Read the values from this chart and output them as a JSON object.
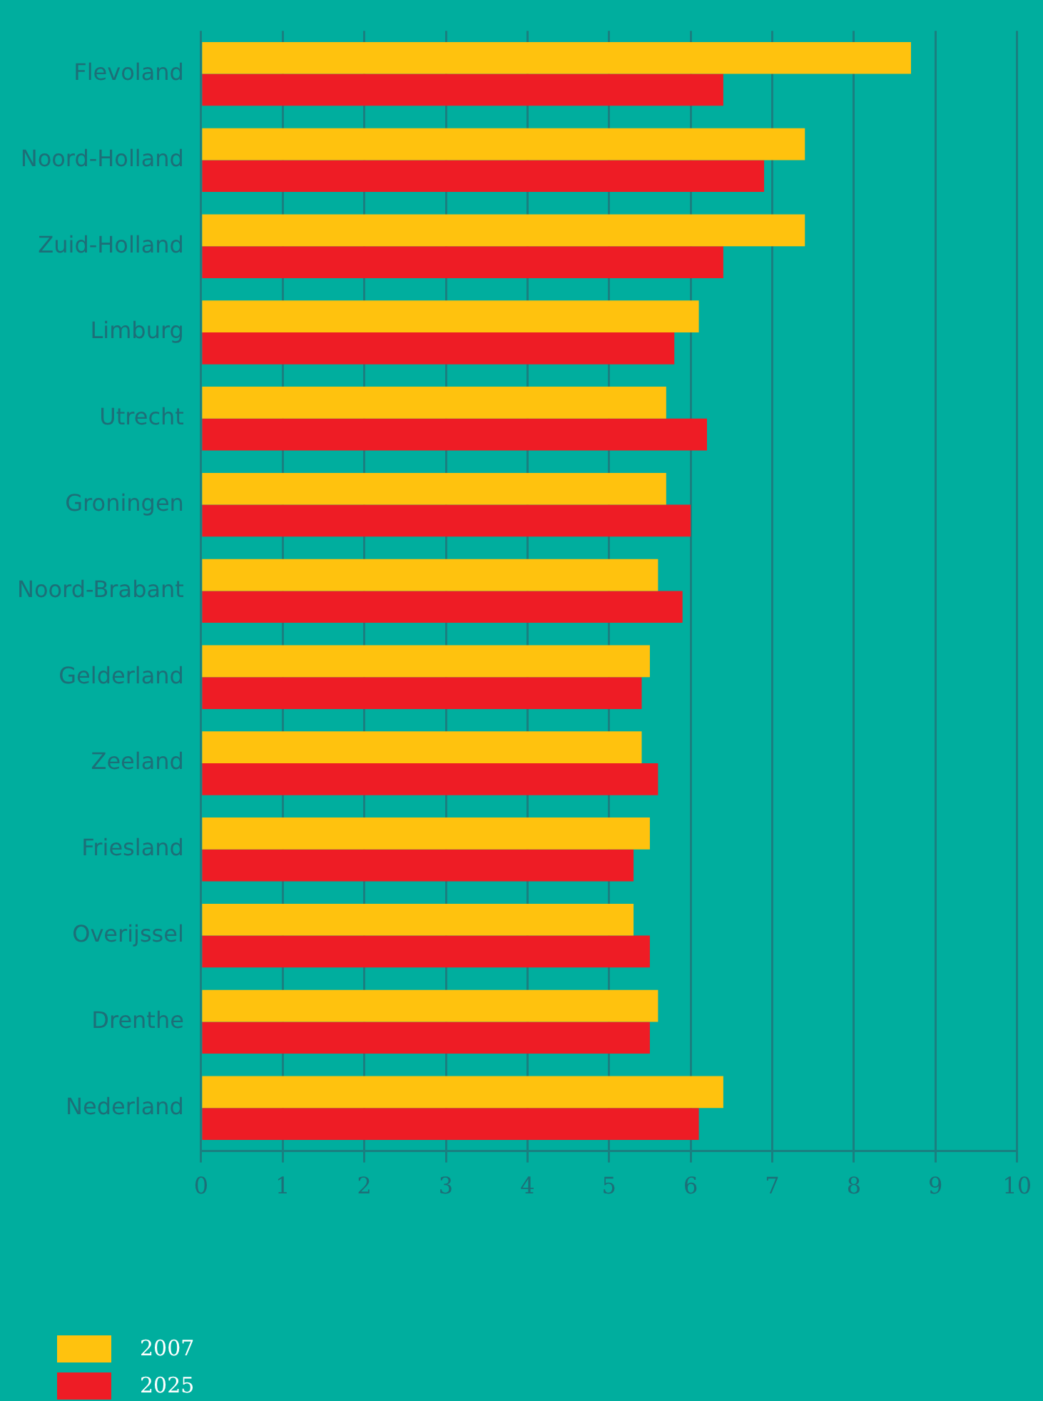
{
  "chart_data": {
    "type": "bar",
    "orientation": "horizontal",
    "categories": [
      "Flevoland",
      "Noord-Holland",
      "Zuid-Holland",
      "Limburg",
      "Utrecht",
      "Groningen",
      "Noord-Brabant",
      "Gelderland",
      "Zeeland",
      "Friesland",
      "Overijssel",
      "Drenthe",
      "Nederland"
    ],
    "series": [
      {
        "name": "2007",
        "color": "#ffc20e",
        "values": [
          8.7,
          7.4,
          7.4,
          6.1,
          5.7,
          5.7,
          5.6,
          5.5,
          5.4,
          5.5,
          5.3,
          5.6,
          6.4
        ]
      },
      {
        "name": "2025",
        "color": "#ee1c25",
        "values": [
          6.4,
          6.9,
          6.4,
          5.8,
          6.2,
          6.0,
          5.9,
          5.4,
          5.6,
          5.3,
          5.5,
          5.5,
          6.1
        ]
      }
    ],
    "xlim": [
      0,
      10
    ],
    "xticks": [
      0,
      1,
      2,
      3,
      4,
      5,
      6,
      7,
      8,
      9,
      10
    ],
    "grid": "x",
    "legend": "bottom left"
  }
}
